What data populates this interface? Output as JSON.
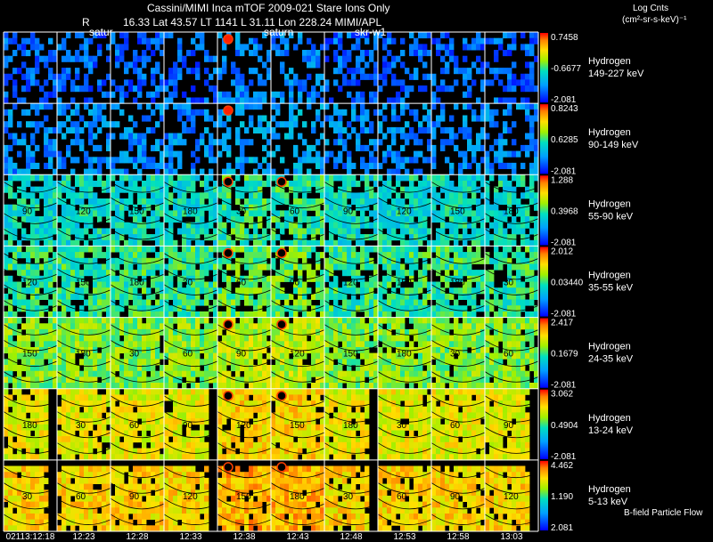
{
  "header": {
    "title": "Cassini/MIMI Inca mTOF  2009-021   Stare   Ions Only",
    "r_label": "R",
    "position_line": "16.33 Lat 43.57 LT 1141 L      31.11 Lon       228.24   MIMI/APL",
    "colorbar_title": "Log Cnts",
    "colorbar_units": "(cm²-sr-s-keV)⁻¹"
  },
  "frame_labels": [
    "satur",
    "saturn",
    "skr-w1"
  ],
  "footer_note": "B-field Particle Flow",
  "chart_data": {
    "type": "heatmap",
    "x": [
      "02113:12:18",
      "12:23",
      "12:28",
      "12:33",
      "12:38",
      "12:43",
      "12:48",
      "12:53",
      "12:58",
      "13:03"
    ],
    "rows": [
      {
        "species": "Hydrogen",
        "energy": "149-227 keV",
        "max": "0.7458",
        "mid": "-0.6677",
        "min": "-2.081",
        "level": 0.15
      },
      {
        "species": "Hydrogen",
        "energy": "90-149 keV",
        "max": "0.8243",
        "mid": "0.6285",
        "min": "-2.081",
        "level": 0.22
      },
      {
        "species": "Hydrogen",
        "energy": "55-90 keV",
        "max": "1.288",
        "mid": "0.3968",
        "min": "-2.081",
        "level": 0.42
      },
      {
        "species": "Hydrogen",
        "energy": "35-55 keV",
        "max": "2.012",
        "mid": "0.03440",
        "min": "-2.081",
        "level": 0.48
      },
      {
        "species": "Hydrogen",
        "energy": "24-35 keV",
        "max": "2.417",
        "mid": "0.1679",
        "min": "-2.081",
        "level": 0.58
      },
      {
        "species": "Hydrogen",
        "energy": "13-24 keV",
        "max": "3.062",
        "mid": "0.4904",
        "min": "-2.081",
        "level": 0.7
      },
      {
        "species": "Hydrogen",
        "energy": "5-13 keV",
        "max": "4.462",
        "mid": "1.190",
        "min": "2.081",
        "level": 0.76
      }
    ],
    "contour_labels": [
      "30",
      "60",
      "90",
      "120",
      "150",
      "180"
    ]
  }
}
